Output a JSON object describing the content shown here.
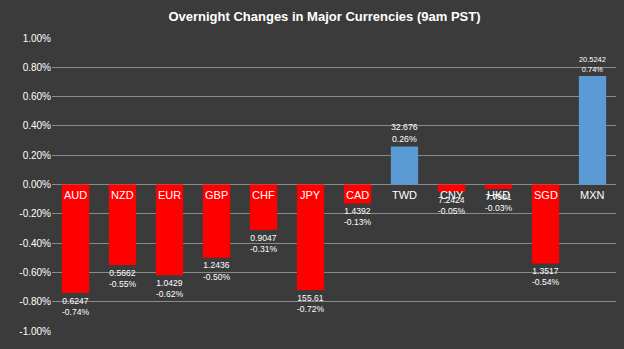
{
  "chart_data": {
    "type": "bar",
    "title": "Overnight Changes in Major Currencies (9am PST)",
    "categories": [
      "AUD",
      "NZD",
      "EUR",
      "GBP",
      "CHF",
      "JPY",
      "CAD",
      "TWD",
      "CNY",
      "HKD",
      "SGD",
      "MXN"
    ],
    "values": [
      -0.74,
      -0.55,
      -0.62,
      -0.5,
      -0.31,
      -0.72,
      -0.13,
      0.26,
      -0.05,
      -0.03,
      -0.54,
      0.74
    ],
    "value_labels": [
      "-0.74%",
      "-0.55%",
      "-0.62%",
      "-0.50%",
      "-0.31%",
      "-0.72%",
      "-0.13%",
      "0.26%",
      "-0.05%",
      "-0.03%",
      "-0.54%",
      "0.74%"
    ],
    "rates": [
      0.6247,
      0.5662,
      1.0429,
      1.2436,
      0.9047,
      155.61,
      1.4392,
      32.676,
      7.2424,
      7.7901,
      1.3517,
      20.5242
    ],
    "colors": [
      "#ff0000",
      "#ff0000",
      "#ff0000",
      "#ff0000",
      "#ff0000",
      "#ff0000",
      "#ff0000",
      "#5b9bd5",
      "#ff0000",
      "#ff0000",
      "#ff0000",
      "#5b9bd5"
    ],
    "ylim": [
      -1,
      1
    ],
    "yticks": [
      {
        "value": -1,
        "label": "-1.00%"
      },
      {
        "value": -0.8,
        "label": "-0.80%"
      },
      {
        "value": -0.6,
        "label": "-0.60%"
      },
      {
        "value": -0.4,
        "label": "-0.40%"
      },
      {
        "value": -0.2,
        "label": "-0.20%"
      },
      {
        "value": 0,
        "label": "0.00%"
      },
      {
        "value": 0.2,
        "label": "0.20%"
      },
      {
        "value": 0.4,
        "label": "0.40%"
      },
      {
        "value": 0.6,
        "label": "0.60%"
      },
      {
        "value": 0.8,
        "label": "0.80%"
      },
      {
        "value": 1,
        "label": "1.00%"
      }
    ],
    "grid": true,
    "data_labels": true,
    "tick_labels": "y"
  }
}
